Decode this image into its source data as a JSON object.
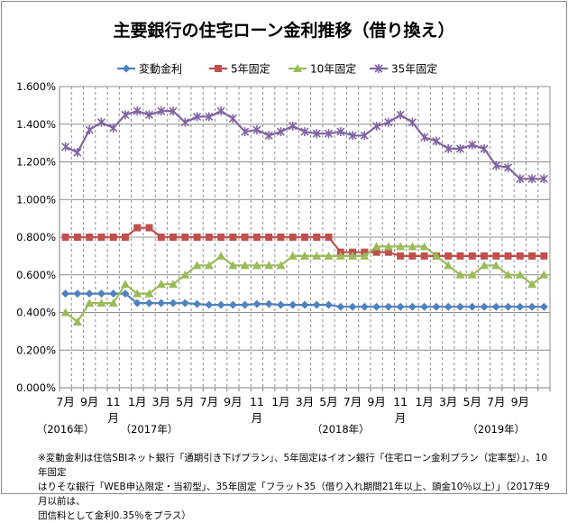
{
  "chart_data": {
    "type": "line",
    "title": "主要銀行の住宅ローン金利推移（借り換え）",
    "xlabel": "",
    "ylabel": "",
    "ylim": [
      0,
      1.6
    ],
    "y_ticks": [
      "0.000%",
      "0.200%",
      "0.400%",
      "0.600%",
      "0.800%",
      "1.000%",
      "1.200%",
      "1.400%",
      "1.600%"
    ],
    "y_tick_values": [
      0,
      0.2,
      0.4,
      0.6,
      0.8,
      1.0,
      1.2,
      1.4,
      1.6
    ],
    "legend_position": "top",
    "grid": true,
    "x_labels": [
      {
        "index": 0,
        "label": "7月"
      },
      {
        "index": 2,
        "label": "9月"
      },
      {
        "index": 4,
        "label": "11月"
      },
      {
        "index": 6,
        "label": "1月"
      },
      {
        "index": 8,
        "label": "3月"
      },
      {
        "index": 10,
        "label": "5月"
      },
      {
        "index": 12,
        "label": "7月"
      },
      {
        "index": 14,
        "label": "9月"
      },
      {
        "index": 16,
        "label": "11月"
      },
      {
        "index": 18,
        "label": "1月"
      },
      {
        "index": 20,
        "label": "3月"
      },
      {
        "index": 22,
        "label": "5月"
      },
      {
        "index": 24,
        "label": "7月"
      },
      {
        "index": 26,
        "label": "9月"
      },
      {
        "index": 28,
        "label": "11月"
      },
      {
        "index": 30,
        "label": "1月"
      },
      {
        "index": 32,
        "label": "3月"
      },
      {
        "index": 34,
        "label": "5月"
      },
      {
        "index": 36,
        "label": "7月"
      },
      {
        "index": 38,
        "label": "9月"
      }
    ],
    "year_labels": [
      {
        "index": 0,
        "label": "（2016年）"
      },
      {
        "index": 7,
        "label": "（2017年）"
      },
      {
        "index": 23,
        "label": "（2018年）"
      },
      {
        "index": 36,
        "label": "（2019年）"
      }
    ],
    "series": [
      {
        "name": "変動金利",
        "color": "#4f81bd",
        "marker": "diamond",
        "values": [
          0.5,
          0.5,
          0.5,
          0.5,
          0.5,
          0.5,
          0.45,
          0.45,
          0.45,
          0.45,
          0.45,
          0.445,
          0.44,
          0.44,
          0.44,
          0.44,
          0.445,
          0.445,
          0.44,
          0.44,
          0.44,
          0.44,
          0.44,
          0.43,
          0.43,
          0.43,
          0.43,
          0.43,
          0.43,
          0.43,
          0.43,
          0.43,
          0.43,
          0.43,
          0.43,
          0.43,
          0.43,
          0.43,
          0.43,
          0.43,
          0.43
        ]
      },
      {
        "name": "5年固定",
        "color": "#c0504d",
        "marker": "square",
        "values": [
          0.8,
          0.8,
          0.8,
          0.8,
          0.8,
          0.8,
          0.85,
          0.85,
          0.8,
          0.8,
          0.8,
          0.8,
          0.8,
          0.8,
          0.8,
          0.8,
          0.8,
          0.8,
          0.8,
          0.8,
          0.8,
          0.8,
          0.8,
          0.72,
          0.72,
          0.72,
          0.72,
          0.72,
          0.7,
          0.7,
          0.7,
          0.7,
          0.7,
          0.7,
          0.7,
          0.7,
          0.7,
          0.7,
          0.7,
          0.7,
          0.7
        ]
      },
      {
        "name": "10年固定",
        "color": "#9bbb59",
        "marker": "triangle",
        "values": [
          0.4,
          0.35,
          0.45,
          0.45,
          0.45,
          0.55,
          0.5,
          0.5,
          0.55,
          0.55,
          0.6,
          0.65,
          0.65,
          0.7,
          0.65,
          0.65,
          0.65,
          0.65,
          0.65,
          0.7,
          0.7,
          0.7,
          0.7,
          0.7,
          0.7,
          0.7,
          0.75,
          0.75,
          0.75,
          0.75,
          0.75,
          0.7,
          0.65,
          0.6,
          0.6,
          0.65,
          0.65,
          0.6,
          0.6,
          0.55,
          0.6
        ]
      },
      {
        "name": "35年固定",
        "color": "#8064a2",
        "marker": "x",
        "values": [
          1.28,
          1.25,
          1.37,
          1.41,
          1.38,
          1.45,
          1.47,
          1.45,
          1.47,
          1.47,
          1.41,
          1.44,
          1.44,
          1.47,
          1.43,
          1.36,
          1.37,
          1.34,
          1.36,
          1.39,
          1.36,
          1.35,
          1.35,
          1.36,
          1.34,
          1.34,
          1.39,
          1.41,
          1.45,
          1.41,
          1.33,
          1.31,
          1.27,
          1.27,
          1.29,
          1.27,
          1.18,
          1.17,
          1.11,
          1.11,
          1.11
        ]
      }
    ]
  },
  "footnote": {
    "line1": "※変動金利は住信SBIネット銀行「通期引き下げプラン」、5年固定はイオン銀行「住宅ローン金利プラン（定率型）」、10年固定",
    "line2": "はりそな銀行「WEB申込限定・当初型」、35年固定「フラット35（借り入れ期間21年以上、頭金10％以上）」（2017年9月以前は、",
    "line3": "団信料として金利0.35％をプラス）"
  }
}
